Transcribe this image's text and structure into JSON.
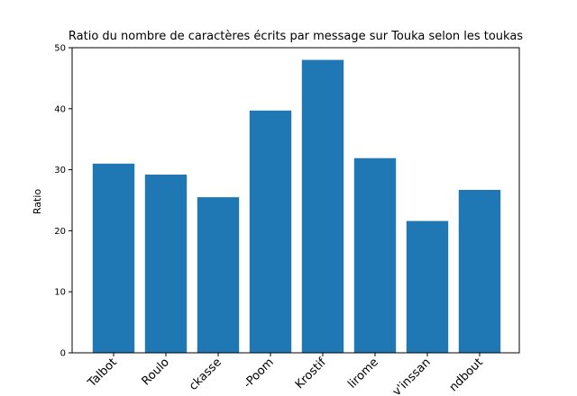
{
  "chart_data": {
    "type": "bar",
    "title": "Ratio du nombre de caractères écrits par message sur Touka selon les toukas",
    "xlabel": "",
    "ylabel": "Ratio",
    "categories": [
      "Talbot",
      "Roulo",
      "ckasse",
      "-Poom",
      "Krostif",
      "lirome",
      "v'inssan",
      "ndbout"
    ],
    "values": [
      31.0,
      29.2,
      25.5,
      39.7,
      48.0,
      31.9,
      21.6,
      26.7
    ],
    "ylim": [
      0,
      50
    ],
    "yticks": [
      0,
      10,
      20,
      30,
      40,
      50
    ],
    "bar_color": "#1f77b4",
    "grid": false,
    "legend": "none"
  }
}
